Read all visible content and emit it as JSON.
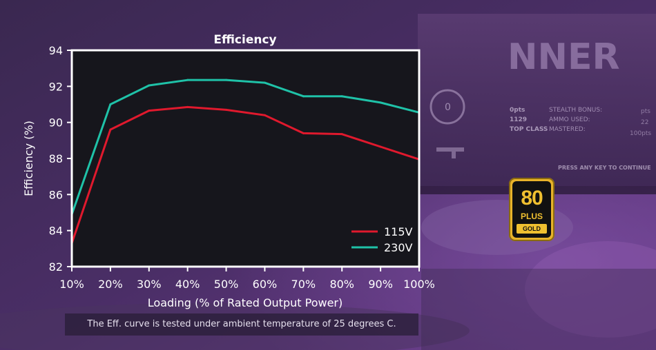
{
  "chart_data": {
    "type": "line",
    "title": "Efficiency",
    "xlabel": "Loading (% of Rated Output Power)",
    "ylabel": "Efficiency (%)",
    "x": [
      10,
      20,
      30,
      40,
      50,
      60,
      70,
      80,
      90,
      100
    ],
    "x_tick_labels": [
      "10%",
      "20%",
      "30%",
      "40%",
      "50%",
      "60%",
      "70%",
      "80%",
      "90%",
      "100%"
    ],
    "xlim": [
      10,
      100
    ],
    "ylim": [
      82,
      94
    ],
    "y_ticks": [
      82,
      84,
      86,
      88,
      90,
      92,
      94
    ],
    "legend_position": "bottom-right",
    "series": [
      {
        "name": "115V",
        "color": "#e0192d",
        "values": [
          83.3,
          89.6,
          90.65,
          90.85,
          90.7,
          90.4,
          89.4,
          89.35,
          88.65,
          87.95
        ]
      },
      {
        "name": "230V",
        "color": "#1fc2a8",
        "values": [
          84.9,
          91.0,
          92.05,
          92.35,
          92.35,
          92.2,
          91.45,
          91.45,
          91.1,
          90.55
        ]
      }
    ]
  },
  "note": "The Eff. curve is tested under ambient temperature of 25 degrees C.",
  "badge": {
    "number": "80",
    "plus": "PLUS",
    "tier": "GOLD"
  },
  "background_hud": {
    "banner_text": "NNER",
    "gauge_value": "0",
    "stat_labels": [
      "STEALTH BONUS:",
      "AMMO USED:",
      "MASTERED:"
    ],
    "stat_values": [
      "0pts",
      "1129",
      "TOP CLASS"
    ],
    "right_values": [
      "pts",
      "22",
      "100pts"
    ],
    "continue_prompt": "PRESS ANY KEY TO CONTINUE"
  },
  "colors": {
    "plot_bg": "#16161c",
    "plot_border": "#ffffff",
    "text": "#ffffff"
  }
}
